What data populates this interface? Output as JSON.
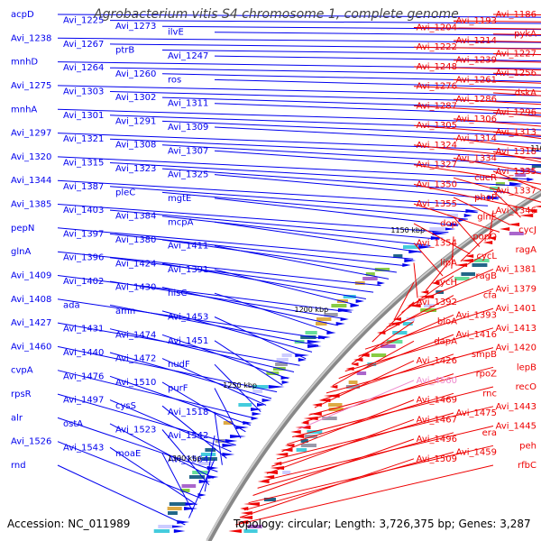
{
  "title": "Agrobacterium vitis S4 chromosome 1, complete genome",
  "footer": {
    "accession": "Accession: NC_011989",
    "topology": "Topology: circular; Length: 3,726,375 bp; Genes: 3,287"
  },
  "colors": {
    "forward_strand": "#0000ee",
    "reverse_strand": "#ee0000",
    "highlight_gene": "#ee88cc",
    "backbone": "#888888",
    "tick": "#228822"
  },
  "scale_ticks": [
    "1050 kbp",
    "1100 kbp",
    "1150 kbp",
    "1200 kbp",
    "1250 kbp",
    "1300 kbp"
  ],
  "left_labels": [
    "acpD",
    "Avi_1225",
    "Avi_1273",
    "ilvE",
    "Avi_1238",
    "Avi_1267",
    "ptrB",
    "Avi_1247",
    "mnhD",
    "Avi_1264",
    "Avi_1260",
    "ros",
    "Avi_1275",
    "Avi_1303",
    "Avi_1302",
    "Avi_1311",
    "mnhA",
    "Avi_1301",
    "Avi_1291",
    "Avi_1309",
    "Avi_1297",
    "Avi_1321",
    "Avi_1308",
    "Avi_1307",
    "Avi_1320",
    "Avi_1315",
    "Avi_1323",
    "Avi_1325",
    "Avi_1344",
    "Avi_1387",
    "pleC",
    "mgtE",
    "Avi_1385",
    "Avi_1403",
    "Avi_1384",
    "mcpA",
    "pepN",
    "Avi_1397",
    "Avi_1380",
    "Avi_1411",
    "glnA",
    "Avi_1396",
    "Avi_1424",
    "Avi_1391",
    "Avi_1409",
    "Avi_1402",
    "Avi_1430",
    "hisC",
    "Avi_1408",
    "ada",
    "amn",
    "Avi_1453",
    "Avi_1427",
    "Avi_1431",
    "Avi_1474",
    "Avi_1451",
    "Avi_1460",
    "Avi_1440",
    "Avi_1472",
    "nudF",
    "cvpA",
    "Avi_1476",
    "Avi_1510",
    "purF",
    "rpsR",
    "Avi_1497",
    "cysS",
    "Avi_1518",
    "alr",
    "ostA",
    "Avi_1523",
    "Avi_1542",
    "Avi_1526",
    "Avi_1543",
    "moaE",
    "Avi_1564",
    "rnd"
  ],
  "right_labels": [
    "Avi_1186",
    "Avi_1193",
    "Avi_1204",
    "pykA",
    "Avi_1214",
    "Avi_1222",
    "Avi_1227",
    "Avi_1239",
    "Avi_1248",
    "Avi_1256",
    "Avi_1261",
    "Avi_1276",
    "dskA",
    "Avi_1286",
    "Avi_1287",
    "Avi_1296",
    "Avi_1306",
    "Avi_1305",
    "Avi_1313",
    "Avi_1314",
    "Avi_1324",
    "Avi_1318",
    "Avi_1334",
    "Avi_1327",
    "Avi_1335",
    "cueR",
    "Avi_1350",
    "Avi_1337",
    "phoP",
    "Avi_1355",
    "Avi_1346",
    "glnE",
    "dop",
    "cycJ",
    "popQ",
    "Avi_1354",
    "ragA",
    "cycL",
    "lipA",
    "Avi_1381",
    "ragB",
    "cycH",
    "Avi_1379",
    "cfa",
    "Avi_1392",
    "Avi_1401",
    "Avi_1393",
    "bioA",
    "Avi_1413",
    "Avi_1416",
    "dapA",
    "Avi_1420",
    "smpB",
    "Avi_1426",
    "lepB",
    "rpoZ",
    "Avi_4560",
    "recO",
    "rnc",
    "Avi_1469",
    "Avi_1443",
    "Avi_1475",
    "Avi_1467",
    "Avi_1445",
    "era",
    "Avi_1496",
    "peh",
    "Avi_1459",
    "Avi_1509",
    "rfbC"
  ]
}
